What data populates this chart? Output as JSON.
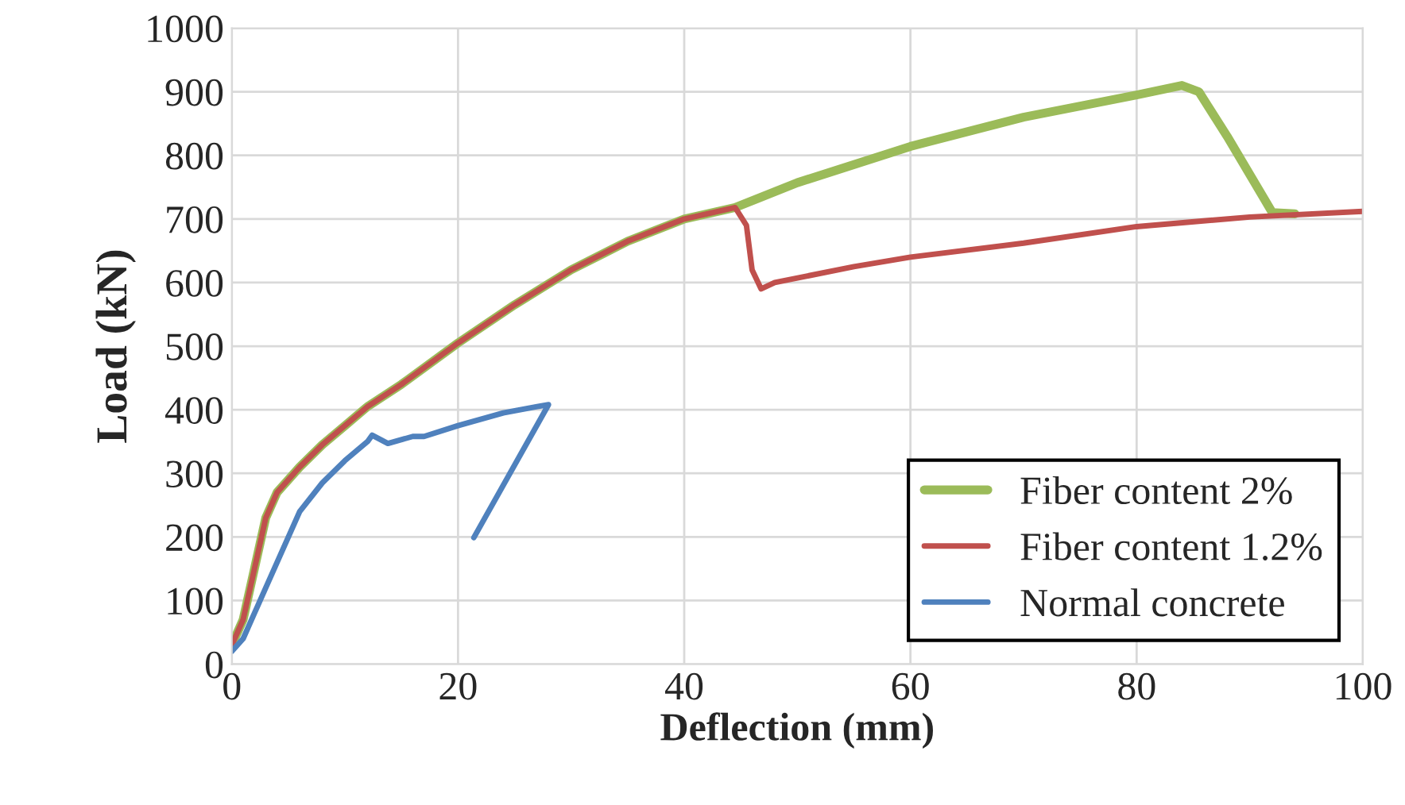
{
  "chart_data": {
    "type": "line",
    "xlabel": "Deflection (mm)",
    "ylabel": "Load (kN)",
    "xlim": [
      0,
      100
    ],
    "ylim": [
      0,
      1000
    ],
    "xticks": [
      0,
      20,
      40,
      60,
      80,
      100
    ],
    "yticks": [
      0,
      100,
      200,
      300,
      400,
      500,
      600,
      700,
      800,
      900,
      1000
    ],
    "grid": true,
    "legend": "bottom right",
    "line_style": "solid",
    "marker": "none",
    "series": [
      {
        "name": "Fiber content 2%",
        "color": "#9bbb59",
        "x": [
          0,
          1,
          2,
          3,
          4,
          6,
          8,
          10,
          12,
          15,
          20,
          25,
          30,
          35,
          40,
          44.5,
          50,
          60,
          70,
          80,
          84,
          85.5,
          88,
          92,
          94
        ],
        "values": [
          30,
          70,
          150,
          230,
          270,
          310,
          345,
          375,
          405,
          440,
          505,
          565,
          620,
          665,
          700,
          718,
          757,
          814,
          860,
          895,
          910,
          900,
          830,
          710,
          708
        ]
      },
      {
        "name": "Fiber content 1.2%",
        "color": "#c0504d",
        "x": [
          0,
          1,
          2,
          3,
          4,
          6,
          8,
          10,
          12,
          15,
          20,
          25,
          30,
          35,
          40,
          44.5,
          45.5,
          46,
          46.8,
          48,
          55,
          60,
          70,
          80,
          90,
          100
        ],
        "values": [
          30,
          70,
          150,
          230,
          270,
          310,
          345,
          375,
          405,
          440,
          505,
          565,
          620,
          665,
          700,
          718,
          690,
          620,
          590,
          600,
          625,
          640,
          662,
          688,
          703,
          712
        ]
      },
      {
        "name": "Normal concrete",
        "color": "#4f81bd",
        "x": [
          0,
          1,
          2,
          3,
          4,
          5,
          6,
          8,
          10,
          12,
          12.4,
          13.8,
          16,
          17,
          20,
          24,
          27,
          28,
          21.4
        ],
        "values": [
          20,
          40,
          80,
          120,
          160,
          200,
          240,
          285,
          320,
          350,
          360,
          347,
          358,
          358,
          375,
          395,
          405,
          408,
          199
        ]
      }
    ]
  }
}
